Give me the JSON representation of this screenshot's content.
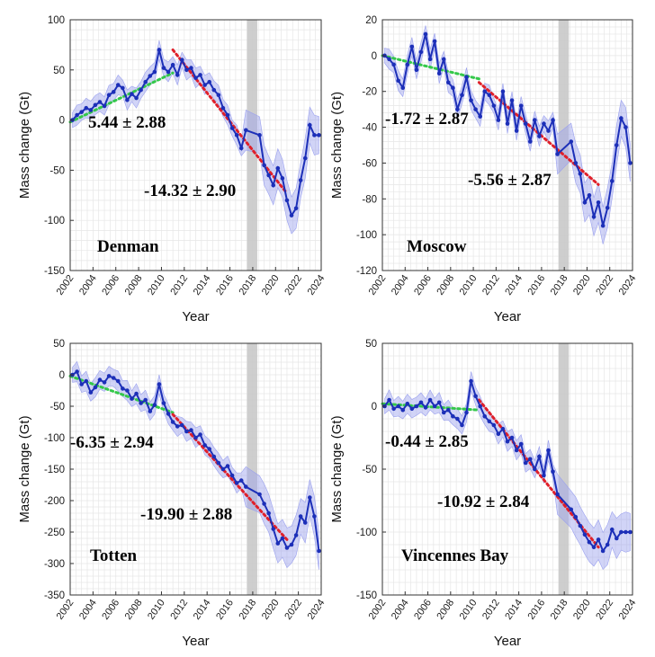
{
  "chart_data": [
    {
      "type": "line",
      "title": "Denman",
      "xlabel": "Year",
      "ylabel": "Mass change (Gt)",
      "xlim": [
        2002,
        2024
      ],
      "ylim": [
        -150,
        100
      ],
      "xticks": [
        "2002",
        "2004",
        "2006",
        "2008",
        "2010",
        "2012",
        "2014",
        "2016",
        "2018",
        "2020",
        "2022",
        "2024"
      ],
      "yticks": [
        100,
        50,
        0,
        -50,
        -100,
        -150
      ],
      "annotations": [
        "5.44 ± 2.88",
        "-14.32 ± 2.90"
      ],
      "gap_band": [
        2017.5,
        2018.4
      ],
      "series": [
        {
          "x": [
            2002.2,
            2002.6,
            2003.0,
            2003.4,
            2003.8,
            2004.2,
            2004.6,
            2005.0,
            2005.4,
            2005.8,
            2006.2,
            2006.6,
            2007.0,
            2007.4,
            2007.8,
            2008.2,
            2008.6,
            2009.0,
            2009.4,
            2009.8,
            2010.2,
            2010.6,
            2011.0,
            2011.4,
            2011.8,
            2012.2,
            2012.6,
            2013.0,
            2013.4,
            2013.8,
            2014.2,
            2014.6,
            2015.0,
            2015.4,
            2015.8,
            2016.2,
            2016.6,
            2017.0,
            2017.4,
            2018.6,
            2019.0,
            2019.4,
            2019.8,
            2020.2,
            2020.6,
            2021.0,
            2021.4,
            2021.8,
            2022.2,
            2022.6,
            2023.0,
            2023.4,
            2023.8
          ],
          "y": [
            0,
            5,
            8,
            12,
            10,
            15,
            18,
            14,
            25,
            28,
            35,
            32,
            20,
            26,
            22,
            30,
            38,
            44,
            48,
            70,
            52,
            48,
            55,
            45,
            60,
            50,
            52,
            42,
            45,
            35,
            38,
            30,
            25,
            12,
            5,
            -8,
            -15,
            -28,
            -10,
            -15,
            -45,
            -55,
            -65,
            -48,
            -58,
            -80,
            -95,
            -88,
            -60,
            -38,
            -5,
            -15,
            -15
          ]
        }
      ],
      "trend_lines": [
        {
          "label": "5.44 ± 2.88",
          "x": [
            2002,
            2011
          ],
          "y": [
            -2,
            47
          ]
        },
        {
          "label": "-14.32 ± 2.90",
          "x": [
            2011,
            2021
          ],
          "y": [
            70,
            -73
          ]
        }
      ]
    },
    {
      "type": "line",
      "title": "Moscow",
      "xlabel": "Year",
      "ylabel": "Mass change (Gt)",
      "xlim": [
        2002,
        2024
      ],
      "ylim": [
        -120,
        20
      ],
      "xticks": [
        "2002",
        "2004",
        "2006",
        "2008",
        "2010",
        "2012",
        "2014",
        "2016",
        "2018",
        "2020",
        "2022",
        "2024"
      ],
      "yticks": [
        20,
        0,
        -20,
        -40,
        -60,
        -80,
        -100,
        -120
      ],
      "annotations": [
        "-1.72 ± 2.87",
        "-5.56 ± 2.87"
      ],
      "gap_band": [
        2017.5,
        2018.4
      ],
      "series": [
        {
          "x": [
            2002.2,
            2002.6,
            2003.0,
            2003.4,
            2003.8,
            2004.2,
            2004.6,
            2005.0,
            2005.4,
            2005.8,
            2006.2,
            2006.6,
            2007.0,
            2007.4,
            2007.8,
            2008.2,
            2008.6,
            2009.0,
            2009.4,
            2009.8,
            2010.2,
            2010.6,
            2011.0,
            2011.4,
            2011.8,
            2012.2,
            2012.6,
            2013.0,
            2013.4,
            2013.8,
            2014.2,
            2014.6,
            2015.0,
            2015.4,
            2015.8,
            2016.2,
            2016.6,
            2017.0,
            2017.4,
            2018.6,
            2019.0,
            2019.4,
            2019.8,
            2020.2,
            2020.6,
            2021.0,
            2021.4,
            2021.8,
            2022.2,
            2022.6,
            2023.0,
            2023.4,
            2023.8
          ],
          "y": [
            0,
            -2,
            -5,
            -14,
            -18,
            -5,
            5,
            -8,
            2,
            12,
            -2,
            8,
            -10,
            -2,
            -15,
            -18,
            -30,
            -22,
            -12,
            -25,
            -30,
            -34,
            -20,
            -22,
            -28,
            -36,
            -20,
            -38,
            -25,
            -42,
            -28,
            -38,
            -48,
            -36,
            -45,
            -38,
            -42,
            -36,
            -55,
            -48,
            -60,
            -66,
            -82,
            -78,
            -90,
            -82,
            -95,
            -85,
            -70,
            -50,
            -35,
            -40,
            -60
          ]
        }
      ],
      "trend_lines": [
        {
          "label": "-1.72 ± 2.87",
          "x": [
            2002,
            2010.5
          ],
          "y": [
            0,
            -13
          ]
        },
        {
          "label": "-5.56 ± 2.87",
          "x": [
            2010.5,
            2021
          ],
          "y": [
            -15,
            -72
          ]
        }
      ]
    },
    {
      "type": "line",
      "title": "Totten",
      "xlabel": "Year",
      "ylabel": "Mass change (Gt)",
      "xlim": [
        2002,
        2024
      ],
      "ylim": [
        -350,
        50
      ],
      "xticks": [
        "2002",
        "2004",
        "2006",
        "2008",
        "2010",
        "2012",
        "2014",
        "2016",
        "2018",
        "2020",
        "2022",
        "2024"
      ],
      "yticks": [
        50,
        0,
        -50,
        -100,
        -150,
        -200,
        -250,
        -300,
        -350
      ],
      "annotations": [
        "-6.35 ± 2.94",
        "-19.90 ± 2.88"
      ],
      "gap_band": [
        2017.5,
        2018.4
      ],
      "series": [
        {
          "x": [
            2002.2,
            2002.6,
            2003.0,
            2003.4,
            2003.8,
            2004.2,
            2004.6,
            2005.0,
            2005.4,
            2005.8,
            2006.2,
            2006.6,
            2007.0,
            2007.4,
            2007.8,
            2008.2,
            2008.6,
            2009.0,
            2009.4,
            2009.8,
            2010.2,
            2010.6,
            2011.0,
            2011.4,
            2011.8,
            2012.2,
            2012.6,
            2013.0,
            2013.4,
            2013.8,
            2014.2,
            2014.6,
            2015.0,
            2015.4,
            2015.8,
            2016.2,
            2016.6,
            2017.0,
            2017.4,
            2018.6,
            2019.0,
            2019.4,
            2019.8,
            2020.2,
            2020.6,
            2021.0,
            2021.4,
            2021.8,
            2022.2,
            2022.6,
            2023.0,
            2023.4,
            2023.8
          ],
          "y": [
            0,
            5,
            -15,
            -10,
            -28,
            -20,
            -8,
            -12,
            -2,
            -5,
            -10,
            -22,
            -25,
            -38,
            -30,
            -45,
            -40,
            -58,
            -48,
            -15,
            -45,
            -62,
            -75,
            -82,
            -80,
            -90,
            -88,
            -100,
            -95,
            -112,
            -118,
            -130,
            -140,
            -150,
            -145,
            -160,
            -172,
            -168,
            -178,
            -190,
            -205,
            -220,
            -245,
            -268,
            -260,
            -275,
            -270,
            -255,
            -225,
            -235,
            -195,
            -225,
            -280
          ]
        }
      ],
      "trend_lines": [
        {
          "label": "-6.35 ± 2.94",
          "x": [
            2002,
            2011
          ],
          "y": [
            -2,
            -60
          ]
        },
        {
          "label": "-19.90 ± 2.88",
          "x": [
            2011,
            2021
          ],
          "y": [
            -63,
            -262
          ]
        }
      ]
    },
    {
      "type": "line",
      "title": "Vincennes Bay",
      "xlabel": "Year",
      "ylabel": "Mass change (Gt)",
      "xlim": [
        2002,
        2024
      ],
      "ylim": [
        -150,
        50
      ],
      "xticks": [
        "2002",
        "2004",
        "2006",
        "2008",
        "2010",
        "2012",
        "2014",
        "2016",
        "2018",
        "2020",
        "2022",
        "2024"
      ],
      "yticks": [
        50,
        0,
        -50,
        -100,
        -150
      ],
      "annotations": [
        "-0.44 ± 2.85",
        "-10.92 ± 2.84"
      ],
      "gap_band": [
        2017.5,
        2018.4
      ],
      "series": [
        {
          "x": [
            2002.2,
            2002.6,
            2003.0,
            2003.4,
            2003.8,
            2004.2,
            2004.6,
            2005.0,
            2005.4,
            2005.8,
            2006.2,
            2006.6,
            2007.0,
            2007.4,
            2007.8,
            2008.2,
            2008.6,
            2009.0,
            2009.4,
            2009.8,
            2010.2,
            2010.6,
            2011.0,
            2011.4,
            2011.8,
            2012.2,
            2012.6,
            2013.0,
            2013.4,
            2013.8,
            2014.2,
            2014.6,
            2015.0,
            2015.4,
            2015.8,
            2016.2,
            2016.6,
            2017.0,
            2017.4,
            2018.6,
            2019.0,
            2019.4,
            2019.8,
            2020.2,
            2020.6,
            2021.0,
            2021.4,
            2021.8,
            2022.2,
            2022.6,
            2023.0,
            2023.4,
            2023.8
          ],
          "y": [
            0,
            5,
            -2,
            0,
            -3,
            2,
            -2,
            0,
            3,
            -1,
            5,
            0,
            3,
            -5,
            -3,
            -8,
            -10,
            -15,
            -5,
            20,
            8,
            0,
            -8,
            -12,
            -15,
            -22,
            -18,
            -28,
            -25,
            -35,
            -30,
            -45,
            -42,
            -50,
            -40,
            -55,
            -35,
            -52,
            -70,
            -82,
            -88,
            -95,
            -102,
            -108,
            -112,
            -106,
            -115,
            -110,
            -98,
            -105,
            -100,
            -100,
            -100
          ]
        }
      ],
      "trend_lines": [
        {
          "label": "-0.44 ± 2.85",
          "x": [
            2002,
            2010.5
          ],
          "y": [
            2,
            -3
          ]
        },
        {
          "label": "-10.92 ± 2.84",
          "x": [
            2010.5,
            2021
          ],
          "y": [
            5,
            -112
          ]
        }
      ]
    }
  ],
  "colors": {
    "series": "#1c2fb8",
    "band": "#9aa0ee",
    "trend_before": "#34c84a",
    "trend_after": "#e0202a",
    "gap": "#c9c9c9",
    "grid": "#e6e6e6"
  }
}
